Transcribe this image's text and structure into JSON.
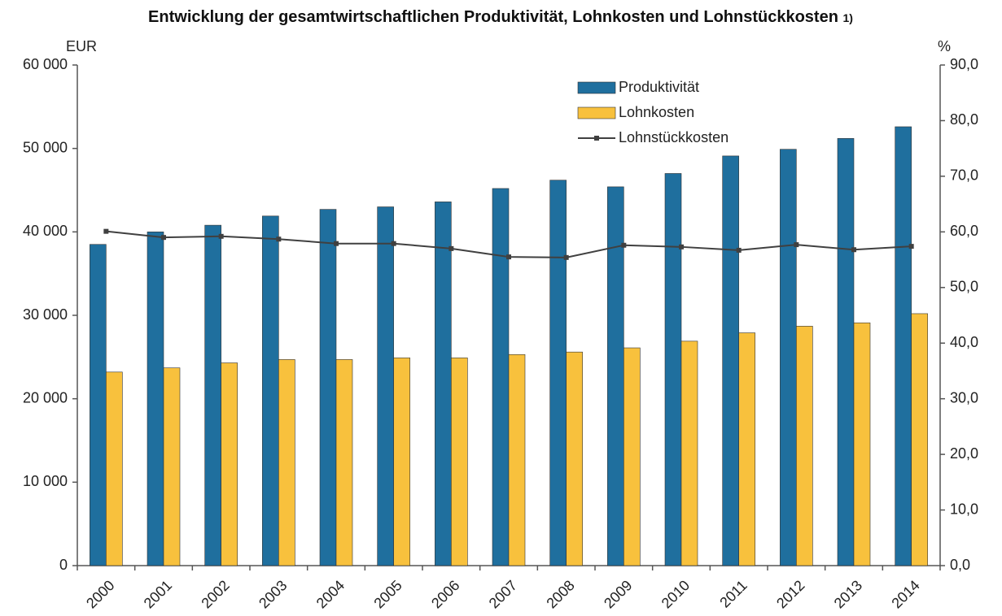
{
  "chart_data": {
    "type": "bar_line",
    "title": "Entwicklung der gesamtwirtschaftlichen Produktivität, Lohnkosten und Lohnstückkosten",
    "title_note": "1)",
    "y_label": "EUR",
    "y2_label": "%",
    "categories": [
      "2000",
      "2001",
      "2002",
      "2003",
      "2004",
      "2005",
      "2006",
      "2007",
      "2008",
      "2009",
      "2010",
      "2011",
      "2012",
      "2013",
      "2014"
    ],
    "series": [
      {
        "name": "Produktivität",
        "type": "bar",
        "color": "#1f6f9e",
        "values": [
          38500,
          40000,
          40800,
          41900,
          42700,
          43000,
          43600,
          45200,
          46200,
          45400,
          47000,
          49100,
          49900,
          51200,
          52600
        ]
      },
      {
        "name": "Lohnkosten",
        "type": "bar",
        "color": "#f8c13d",
        "values": [
          23200,
          23700,
          24300,
          24700,
          24700,
          24900,
          24900,
          25300,
          25600,
          26100,
          26900,
          27900,
          28700,
          29100,
          30200
        ]
      },
      {
        "name": "Lohnstückkosten",
        "type": "line",
        "axis": "y2",
        "color": "#404040",
        "values": [
          60.1,
          59.0,
          59.2,
          58.7,
          57.9,
          57.9,
          57.0,
          55.5,
          55.4,
          57.6,
          57.3,
          56.7,
          57.7,
          56.8,
          57.4
        ]
      }
    ],
    "ylim": [
      0,
      60000
    ],
    "yticks": [
      0,
      {
        "value": 10000,
        "label": "10 000"
      },
      {
        "value": 20000,
        "label": "20 000"
      },
      {
        "value": 30000,
        "label": "30 000"
      },
      {
        "value": 40000,
        "label": "40 000"
      },
      {
        "value": 50000,
        "label": "50 000"
      },
      {
        "value": 60000,
        "label": "60 000"
      }
    ],
    "y2lim": [
      0,
      90
    ],
    "y2ticks": [
      {
        "value": 0,
        "label": "0,0"
      },
      {
        "value": 10,
        "label": "10,0"
      },
      {
        "value": 20,
        "label": "20,0"
      },
      {
        "value": 30,
        "label": "30,0"
      },
      {
        "value": 40,
        "label": "40,0"
      },
      {
        "value": 50,
        "label": "50,0"
      },
      {
        "value": 60,
        "label": "60,0"
      },
      {
        "value": 70,
        "label": "70,0"
      },
      {
        "value": 80,
        "label": "80,0"
      },
      {
        "value": 90,
        "label": "90,0"
      }
    ],
    "legend": "top-right"
  }
}
